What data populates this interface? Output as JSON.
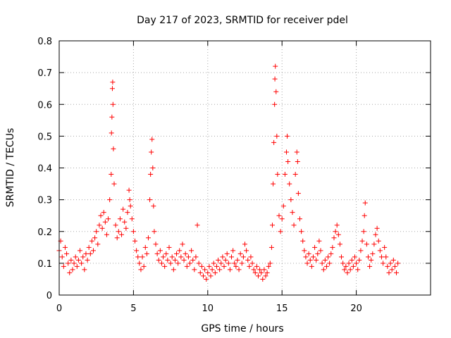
{
  "chart_data": {
    "type": "scatter",
    "title": "Day 217 of 2023, SRMTID for receiver pdel",
    "xlabel": "GPS time / hours",
    "ylabel": "SRMTID / TECUs",
    "xlim": [
      0,
      25
    ],
    "ylim": [
      0,
      0.8
    ],
    "x_ticks": [
      0,
      5,
      10,
      15,
      20
    ],
    "y_ticks": [
      0,
      0.1,
      0.2,
      0.3,
      0.4,
      0.5,
      0.6,
      0.7,
      0.8
    ],
    "x_tick_labels": [
      "0",
      "5",
      "10",
      "15",
      "20"
    ],
    "y_tick_labels": [
      "0",
      "0.1",
      "0.2",
      "0.3",
      "0.4",
      "0.5",
      "0.6",
      "0.7",
      "0.8"
    ],
    "grid": true,
    "marker": "+",
    "color": "#ff0000",
    "series": [
      {
        "name": "SRMTID",
        "points": [
          [
            0.0,
            0.14
          ],
          [
            0.1,
            0.17
          ],
          [
            0.2,
            0.12
          ],
          [
            0.3,
            0.09
          ],
          [
            0.4,
            0.15
          ],
          [
            0.5,
            0.13
          ],
          [
            0.6,
            0.1
          ],
          [
            0.7,
            0.07
          ],
          [
            0.8,
            0.11
          ],
          [
            0.9,
            0.08
          ],
          [
            1.0,
            0.1
          ],
          [
            1.1,
            0.12
          ],
          [
            1.2,
            0.09
          ],
          [
            1.3,
            0.11
          ],
          [
            1.4,
            0.14
          ],
          [
            1.5,
            0.1
          ],
          [
            1.6,
            0.12
          ],
          [
            1.7,
            0.08
          ],
          [
            1.8,
            0.13
          ],
          [
            1.9,
            0.11
          ],
          [
            2.0,
            0.15
          ],
          [
            2.1,
            0.13
          ],
          [
            2.2,
            0.17
          ],
          [
            2.3,
            0.14
          ],
          [
            2.4,
            0.18
          ],
          [
            2.5,
            0.2
          ],
          [
            2.6,
            0.16
          ],
          [
            2.7,
            0.22
          ],
          [
            2.8,
            0.25
          ],
          [
            2.9,
            0.21
          ],
          [
            3.0,
            0.26
          ],
          [
            3.1,
            0.23
          ],
          [
            3.2,
            0.19
          ],
          [
            3.3,
            0.24
          ],
          [
            3.4,
            0.3
          ],
          [
            3.5,
            0.38
          ],
          [
            3.52,
            0.51
          ],
          [
            3.55,
            0.56
          ],
          [
            3.58,
            0.65
          ],
          [
            3.6,
            0.67
          ],
          [
            3.62,
            0.6
          ],
          [
            3.65,
            0.46
          ],
          [
            3.7,
            0.35
          ],
          [
            3.8,
            0.22
          ],
          [
            3.9,
            0.18
          ],
          [
            4.0,
            0.2
          ],
          [
            4.1,
            0.24
          ],
          [
            4.2,
            0.19
          ],
          [
            4.3,
            0.27
          ],
          [
            4.4,
            0.23
          ],
          [
            4.5,
            0.21
          ],
          [
            4.6,
            0.26
          ],
          [
            4.7,
            0.33
          ],
          [
            4.75,
            0.3
          ],
          [
            4.8,
            0.28
          ],
          [
            4.9,
            0.24
          ],
          [
            5.0,
            0.2
          ],
          [
            5.1,
            0.17
          ],
          [
            5.2,
            0.14
          ],
          [
            5.3,
            0.12
          ],
          [
            5.4,
            0.1
          ],
          [
            5.5,
            0.08
          ],
          [
            5.6,
            0.12
          ],
          [
            5.7,
            0.09
          ],
          [
            5.8,
            0.15
          ],
          [
            5.9,
            0.13
          ],
          [
            6.0,
            0.18
          ],
          [
            6.1,
            0.3
          ],
          [
            6.15,
            0.38
          ],
          [
            6.2,
            0.45
          ],
          [
            6.25,
            0.49
          ],
          [
            6.3,
            0.4
          ],
          [
            6.35,
            0.28
          ],
          [
            6.4,
            0.2
          ],
          [
            6.5,
            0.16
          ],
          [
            6.6,
            0.13
          ],
          [
            6.7,
            0.11
          ],
          [
            6.8,
            0.14
          ],
          [
            6.9,
            0.1
          ],
          [
            7.0,
            0.12
          ],
          [
            7.1,
            0.09
          ],
          [
            7.2,
            0.13
          ],
          [
            7.3,
            0.11
          ],
          [
            7.4,
            0.15
          ],
          [
            7.5,
            0.1
          ],
          [
            7.6,
            0.12
          ],
          [
            7.7,
            0.08
          ],
          [
            7.8,
            0.11
          ],
          [
            7.9,
            0.13
          ],
          [
            8.0,
            0.1
          ],
          [
            8.1,
            0.14
          ],
          [
            8.2,
            0.12
          ],
          [
            8.3,
            0.16
          ],
          [
            8.4,
            0.11
          ],
          [
            8.5,
            0.13
          ],
          [
            8.6,
            0.09
          ],
          [
            8.7,
            0.12
          ],
          [
            8.8,
            0.1
          ],
          [
            8.9,
            0.14
          ],
          [
            9.0,
            0.11
          ],
          [
            9.1,
            0.08
          ],
          [
            9.2,
            0.12
          ],
          [
            9.3,
            0.22
          ],
          [
            9.4,
            0.1
          ],
          [
            9.5,
            0.07
          ],
          [
            9.6,
            0.09
          ],
          [
            9.7,
            0.06
          ],
          [
            9.8,
            0.08
          ],
          [
            9.9,
            0.05
          ],
          [
            10.0,
            0.07
          ],
          [
            10.1,
            0.09
          ],
          [
            10.2,
            0.06
          ],
          [
            10.3,
            0.08
          ],
          [
            10.4,
            0.1
          ],
          [
            10.5,
            0.07
          ],
          [
            10.6,
            0.09
          ],
          [
            10.7,
            0.11
          ],
          [
            10.8,
            0.08
          ],
          [
            10.9,
            0.1
          ],
          [
            11.0,
            0.12
          ],
          [
            11.1,
            0.09
          ],
          [
            11.2,
            0.11
          ],
          [
            11.3,
            0.13
          ],
          [
            11.4,
            0.1
          ],
          [
            11.5,
            0.08
          ],
          [
            11.6,
            0.12
          ],
          [
            11.7,
            0.14
          ],
          [
            11.8,
            0.1
          ],
          [
            11.9,
            0.09
          ],
          [
            12.0,
            0.11
          ],
          [
            12.1,
            0.08
          ],
          [
            12.2,
            0.13
          ],
          [
            12.3,
            0.1
          ],
          [
            12.4,
            0.12
          ],
          [
            12.5,
            0.16
          ],
          [
            12.6,
            0.14
          ],
          [
            12.7,
            0.11
          ],
          [
            12.8,
            0.09
          ],
          [
            12.9,
            0.12
          ],
          [
            13.0,
            0.1
          ],
          [
            13.1,
            0.08
          ],
          [
            13.2,
            0.07
          ],
          [
            13.3,
            0.09
          ],
          [
            13.4,
            0.06
          ],
          [
            13.5,
            0.08
          ],
          [
            13.6,
            0.07
          ],
          [
            13.7,
            0.05
          ],
          [
            13.8,
            0.08
          ],
          [
            13.9,
            0.06
          ],
          [
            14.0,
            0.07
          ],
          [
            14.1,
            0.09
          ],
          [
            14.2,
            0.1
          ],
          [
            14.3,
            0.15
          ],
          [
            14.35,
            0.22
          ],
          [
            14.4,
            0.35
          ],
          [
            14.45,
            0.48
          ],
          [
            14.5,
            0.6
          ],
          [
            14.52,
            0.68
          ],
          [
            14.55,
            0.72
          ],
          [
            14.6,
            0.64
          ],
          [
            14.65,
            0.5
          ],
          [
            14.7,
            0.38
          ],
          [
            14.8,
            0.25
          ],
          [
            14.9,
            0.2
          ],
          [
            15.0,
            0.24
          ],
          [
            15.1,
            0.28
          ],
          [
            15.2,
            0.38
          ],
          [
            15.3,
            0.45
          ],
          [
            15.35,
            0.5
          ],
          [
            15.4,
            0.42
          ],
          [
            15.5,
            0.35
          ],
          [
            15.6,
            0.3
          ],
          [
            15.7,
            0.26
          ],
          [
            15.8,
            0.22
          ],
          [
            15.9,
            0.38
          ],
          [
            16.0,
            0.45
          ],
          [
            16.05,
            0.42
          ],
          [
            16.1,
            0.32
          ],
          [
            16.2,
            0.24
          ],
          [
            16.3,
            0.2
          ],
          [
            16.4,
            0.17
          ],
          [
            16.5,
            0.14
          ],
          [
            16.6,
            0.12
          ],
          [
            16.7,
            0.1
          ],
          [
            16.8,
            0.13
          ],
          [
            16.9,
            0.11
          ],
          [
            17.0,
            0.09
          ],
          [
            17.1,
            0.12
          ],
          [
            17.2,
            0.15
          ],
          [
            17.3,
            0.11
          ],
          [
            17.4,
            0.13
          ],
          [
            17.5,
            0.17
          ],
          [
            17.6,
            0.14
          ],
          [
            17.7,
            0.1
          ],
          [
            17.8,
            0.08
          ],
          [
            17.9,
            0.11
          ],
          [
            18.0,
            0.09
          ],
          [
            18.1,
            0.12
          ],
          [
            18.2,
            0.1
          ],
          [
            18.3,
            0.13
          ],
          [
            18.4,
            0.15
          ],
          [
            18.5,
            0.18
          ],
          [
            18.6,
            0.2
          ],
          [
            18.7,
            0.22
          ],
          [
            18.8,
            0.19
          ],
          [
            18.9,
            0.16
          ],
          [
            19.0,
            0.12
          ],
          [
            19.1,
            0.1
          ],
          [
            19.2,
            0.08
          ],
          [
            19.3,
            0.09
          ],
          [
            19.4,
            0.07
          ],
          [
            19.5,
            0.1
          ],
          [
            19.6,
            0.08
          ],
          [
            19.7,
            0.11
          ],
          [
            19.8,
            0.09
          ],
          [
            19.9,
            0.12
          ],
          [
            20.0,
            0.1
          ],
          [
            20.1,
            0.08
          ],
          [
            20.2,
            0.11
          ],
          [
            20.3,
            0.14
          ],
          [
            20.4,
            0.17
          ],
          [
            20.5,
            0.2
          ],
          [
            20.55,
            0.25
          ],
          [
            20.6,
            0.29
          ],
          [
            20.7,
            0.16
          ],
          [
            20.8,
            0.12
          ],
          [
            20.9,
            0.09
          ],
          [
            21.0,
            0.11
          ],
          [
            21.1,
            0.13
          ],
          [
            21.2,
            0.16
          ],
          [
            21.3,
            0.19
          ],
          [
            21.4,
            0.21
          ],
          [
            21.5,
            0.17
          ],
          [
            21.6,
            0.14
          ],
          [
            21.7,
            0.12
          ],
          [
            21.8,
            0.1
          ],
          [
            21.9,
            0.15
          ],
          [
            22.0,
            0.12
          ],
          [
            22.1,
            0.09
          ],
          [
            22.2,
            0.07
          ],
          [
            22.3,
            0.1
          ],
          [
            22.4,
            0.08
          ],
          [
            22.5,
            0.11
          ],
          [
            22.6,
            0.09
          ],
          [
            22.7,
            0.07
          ],
          [
            22.8,
            0.1
          ]
        ]
      }
    ]
  }
}
